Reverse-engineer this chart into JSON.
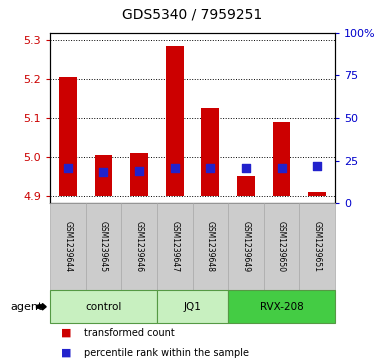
{
  "title": "GDS5340 / 7959251",
  "samples": [
    "GSM1239644",
    "GSM1239645",
    "GSM1239646",
    "GSM1239647",
    "GSM1239648",
    "GSM1239649",
    "GSM1239650",
    "GSM1239651"
  ],
  "red_values": [
    5.205,
    5.005,
    5.01,
    5.285,
    5.125,
    4.95,
    5.09,
    4.91
  ],
  "blue_values": [
    4.972,
    4.96,
    4.962,
    4.972,
    4.97,
    4.97,
    4.97,
    4.975
  ],
  "red_base": 4.9,
  "ylim_left": [
    4.88,
    5.32
  ],
  "ylim_right": [
    0,
    100
  ],
  "yticks_left": [
    4.9,
    5.0,
    5.1,
    5.2,
    5.3
  ],
  "yticks_right": [
    0,
    25,
    50,
    75,
    100
  ],
  "groups": [
    {
      "label": "control",
      "start": 0,
      "end": 3
    },
    {
      "label": "JQ1",
      "start": 3,
      "end": 5
    },
    {
      "label": "RVX-208",
      "start": 5,
      "end": 8
    }
  ],
  "group_colors": [
    "#c8f0c0",
    "#c8f0c0",
    "#44cc44"
  ],
  "red_color": "#cc0000",
  "blue_color": "#2222cc",
  "bar_width": 0.5,
  "blue_size": 28,
  "legend_red": "transformed count",
  "legend_blue": "percentile rank within the sample",
  "agent_label": "agent",
  "plot_bg": "#ffffff",
  "tick_left_color": "#cc0000",
  "tick_right_color": "#0000cc",
  "sample_box_color": "#cccccc",
  "sample_box_edge": "#aaaaaa"
}
